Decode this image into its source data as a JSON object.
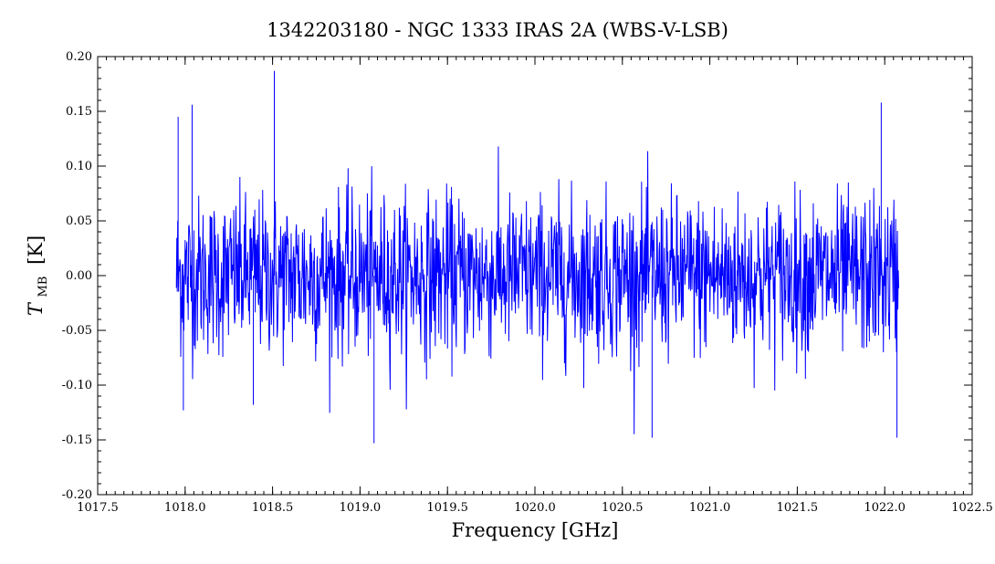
{
  "chart_data": {
    "type": "line",
    "title": "1342203180 - NGC 1333 IRAS 2A (WBS-V-LSB)",
    "xlabel": "Frequency [GHz]",
    "ylabel_main": "T",
    "ylabel_sub": "MB",
    "ylabel_unit": "[K]",
    "xlim": [
      1017.5,
      1022.5
    ],
    "ylim": [
      -0.2,
      0.2
    ],
    "x_ticks": [
      1017.5,
      1018.0,
      1018.5,
      1019.0,
      1019.5,
      1020.0,
      1020.5,
      1021.0,
      1021.5,
      1022.0,
      1022.5
    ],
    "x_tick_labels": [
      "1017.5",
      "1018.0",
      "1018.5",
      "1019.0",
      "1019.5",
      "1020.0",
      "1020.5",
      "1021.0",
      "1021.5",
      "1022.0",
      "1022.5"
    ],
    "y_ticks": [
      -0.2,
      -0.15,
      -0.1,
      -0.05,
      0.0,
      0.05,
      0.1,
      0.15,
      0.2
    ],
    "y_tick_labels": [
      "-0.20",
      "-0.15",
      "-0.10",
      "-0.05",
      "0.00",
      "0.05",
      "0.10",
      "0.15",
      "0.20"
    ],
    "grid": false,
    "series": [
      {
        "color": "#0000ff",
        "x_range": [
          1017.95,
          1022.08
        ],
        "baseline": 0.0,
        "noise_rms": 0.04,
        "points": 1650,
        "peaks": [
          {
            "x": 1017.96,
            "y": 0.145
          },
          {
            "x": 1018.04,
            "y": 0.156
          },
          {
            "x": 1018.51,
            "y": 0.187
          },
          {
            "x": 1021.98,
            "y": 0.158
          },
          {
            "x": 1017.99,
            "y": -0.123
          },
          {
            "x": 1018.39,
            "y": -0.118
          },
          {
            "x": 1019.08,
            "y": -0.153
          },
          {
            "x": 1020.67,
            "y": -0.148
          },
          {
            "x": 1022.07,
            "y": -0.148
          }
        ]
      }
    ]
  }
}
